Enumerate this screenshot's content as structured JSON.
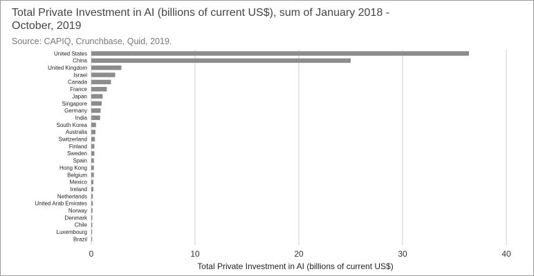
{
  "chart_data": {
    "type": "bar",
    "orientation": "horizontal",
    "title": "Total Private Investment in AI (billions of current US$), sum of January 2018 - October, 2019",
    "subtitle": "Source: CAPIQ, Crunchbase, Quid, 2019.",
    "xlabel": "Total Private Investment in AI (billions of current US$)",
    "ylabel": "",
    "xlim": [
      0,
      40
    ],
    "xticks": [
      "0",
      "10",
      "20",
      "30",
      "40"
    ],
    "grid": true,
    "bar_color": "#8c8c8c",
    "categories": [
      "United States",
      "China",
      "United Kingdom",
      "Israel",
      "Canada",
      "France",
      "Japan",
      "Singapore",
      "Germany",
      "India",
      "South Korea",
      "Australia",
      "Switzerland",
      "Finland",
      "Sweden",
      "Spain",
      "Hong Kong",
      "Belgium",
      "Mexico",
      "Ireland",
      "Netherlands",
      "United Arab Emirates",
      "Norway",
      "Denmark",
      "Chile",
      "Luxembourg",
      "Brazil"
    ],
    "values": [
      36.4,
      25.0,
      2.9,
      2.3,
      1.9,
      1.5,
      1.1,
      1.0,
      0.9,
      0.85,
      0.45,
      0.4,
      0.35,
      0.3,
      0.3,
      0.25,
      0.25,
      0.25,
      0.2,
      0.2,
      0.15,
      0.15,
      0.12,
      0.1,
      0.1,
      0.08,
      0.05
    ]
  }
}
